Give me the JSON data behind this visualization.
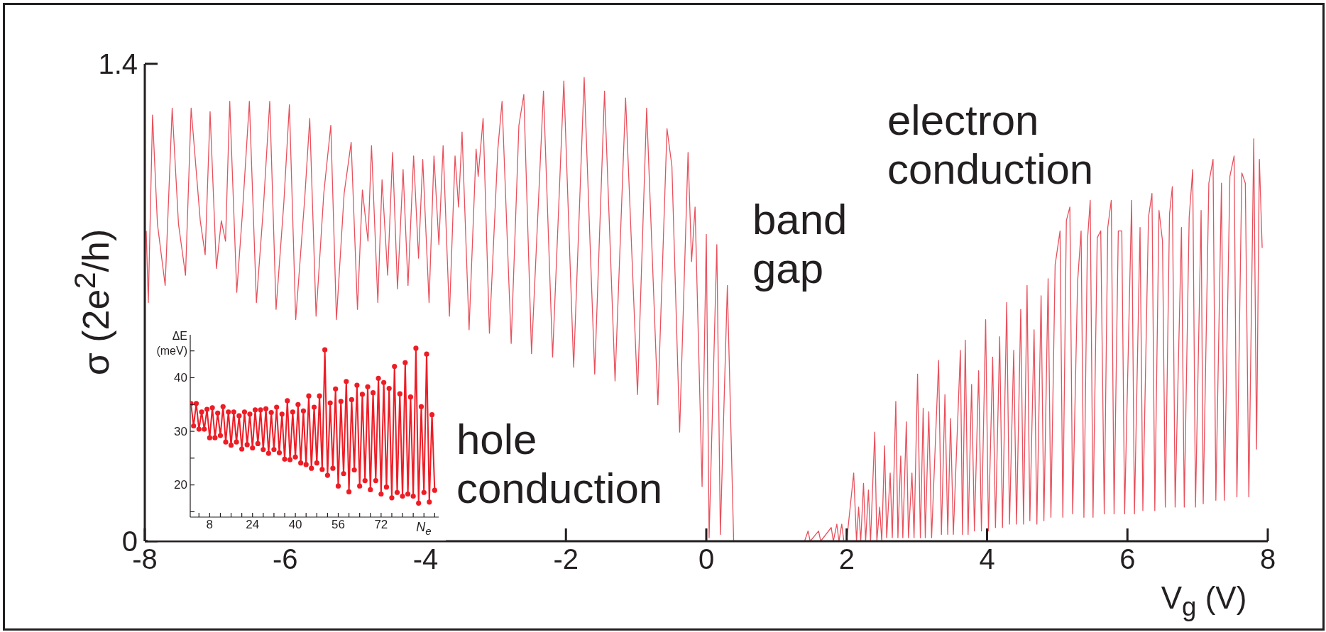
{
  "chart_data": [
    {
      "type": "line",
      "xlabel": "V$_{g}$ (V)",
      "ylabel": "σ (2e$^{2}$/h)",
      "color": "#e9505c",
      "annotations": [
        "hole conduction",
        "band gap",
        "electron conduction"
      ],
      "xlim": [
        -8,
        8
      ],
      "ylim": [
        0,
        1.4
      ],
      "xticks": [
        -8,
        -6,
        -4,
        -2,
        0,
        2,
        4,
        6,
        8
      ],
      "yticks": [
        0,
        1.4
      ],
      "x": [
        -7.98,
        -7.95,
        -7.89,
        -7.82,
        -7.71,
        -7.61,
        -7.52,
        -7.42,
        -7.34,
        -7.21,
        -7.14,
        -7.07,
        -6.98,
        -6.91,
        -6.85,
        -6.79,
        -6.69,
        -6.61,
        -6.51,
        -6.41,
        -6.31,
        -6.22,
        -6.13,
        -6.02,
        -5.94,
        -5.85,
        -5.72,
        -5.65,
        -5.56,
        -5.45,
        -5.35,
        -5.27,
        -5.16,
        -5.06,
        -4.97,
        -4.9,
        -4.82,
        -4.77,
        -4.68,
        -4.62,
        -4.54,
        -4.47,
        -4.4,
        -4.32,
        -4.25,
        -4.17,
        -4.1,
        -4.04,
        -3.95,
        -3.88,
        -3.81,
        -3.75,
        -3.66,
        -3.58,
        -3.53,
        -3.48,
        -3.38,
        -3.28,
        -3.25,
        -3.18,
        -3.09,
        -2.97,
        -2.91,
        -2.78,
        -2.67,
        -2.6,
        -2.49,
        -2.32,
        -2.19,
        -2.03,
        -1.89,
        -1.74,
        -1.59,
        -1.45,
        -1.3,
        -1.15,
        -0.98,
        -0.85,
        -0.69,
        -0.56,
        -0.49,
        -0.38,
        -0.26,
        -0.21,
        -0.16,
        -0.06,
        0.0,
        0.04,
        0.15,
        0.2,
        0.3,
        0.39,
        1.0,
        1.4,
        1.45,
        1.48,
        1.6,
        1.63,
        1.78,
        1.81,
        1.86,
        1.89,
        1.93,
        1.96,
        2.0,
        2.1,
        2.14,
        2.17,
        2.2,
        2.24,
        2.27,
        2.31,
        2.34,
        2.4,
        2.43,
        2.47,
        2.5,
        2.54,
        2.57,
        2.62,
        2.65,
        2.7,
        2.73,
        2.77,
        2.8,
        2.85,
        2.88,
        2.93,
        2.96,
        3.01,
        3.05,
        3.09,
        3.12,
        3.17,
        3.21,
        3.31,
        3.35,
        3.4,
        3.44,
        3.48,
        3.52,
        3.62,
        3.65,
        3.69,
        3.73,
        3.78,
        3.82,
        3.88,
        3.92,
        3.98,
        4.02,
        4.08,
        4.12,
        4.18,
        4.22,
        4.28,
        4.32,
        4.38,
        4.42,
        4.48,
        4.52,
        4.57,
        4.61,
        4.67,
        4.71,
        4.77,
        4.81,
        4.87,
        4.91,
        4.97,
        5.04,
        5.08,
        5.13,
        5.18,
        5.22,
        5.29,
        5.34,
        5.38,
        5.43,
        5.47,
        5.51,
        5.57,
        5.62,
        5.67,
        5.72,
        5.77,
        5.81,
        5.87,
        5.92,
        5.96,
        6.06,
        6.1,
        6.18,
        6.22,
        6.3,
        6.35,
        6.39,
        6.45,
        6.5,
        6.54,
        6.6,
        6.64,
        6.68,
        6.77,
        6.81,
        6.88,
        6.93,
        6.97,
        7.05,
        7.08,
        7.16,
        7.22,
        7.26,
        7.34,
        7.38,
        7.46,
        7.52,
        7.56,
        7.63,
        7.68,
        7.73,
        7.8,
        7.84,
        7.88,
        7.92
      ],
      "values": [
        0.91,
        0.7,
        1.25,
        0.93,
        0.75,
        1.27,
        0.93,
        0.78,
        1.27,
        0.94,
        0.84,
        1.26,
        0.8,
        0.94,
        0.88,
        1.29,
        0.73,
        0.96,
        1.29,
        0.7,
        0.98,
        1.29,
        0.68,
        0.99,
        1.28,
        0.65,
        1.01,
        1.24,
        0.66,
        1.02,
        1.22,
        0.65,
        1.02,
        1.17,
        0.68,
        1.03,
        0.88,
        1.16,
        0.7,
        1.06,
        0.78,
        1.14,
        0.74,
        1.09,
        0.75,
        1.13,
        0.83,
        1.12,
        0.7,
        1.13,
        0.87,
        1.16,
        0.66,
        1.13,
        0.98,
        1.2,
        0.62,
        1.15,
        1.07,
        1.24,
        0.61,
        1.15,
        1.29,
        0.58,
        1.22,
        1.31,
        0.55,
        1.32,
        0.54,
        1.35,
        0.51,
        1.36,
        0.49,
        1.32,
        0.47,
        1.3,
        0.43,
        1.27,
        0.4,
        1.21,
        1.1,
        0.32,
        1.14,
        0.82,
        0.98,
        0.16,
        0.9,
        0.01,
        0.87,
        0.02,
        0.75,
        0.0,
        0.0,
        0.0,
        0.03,
        0.0,
        0.03,
        0.0,
        0.04,
        0.0,
        0.05,
        0.0,
        0.05,
        0.0,
        0.0,
        0.2,
        0.0,
        0.1,
        0.0,
        0.17,
        0.0,
        0.15,
        0.0,
        0.32,
        0.0,
        0.1,
        0.0,
        0.28,
        0.01,
        0.2,
        0.01,
        0.41,
        0.01,
        0.25,
        0.01,
        0.35,
        0.01,
        0.2,
        0.01,
        0.49,
        0.01,
        0.39,
        0.01,
        0.38,
        0.01,
        0.53,
        0.02,
        0.43,
        0.02,
        0.36,
        0.02,
        0.56,
        0.02,
        0.59,
        0.02,
        0.46,
        0.03,
        0.5,
        0.03,
        0.65,
        0.03,
        0.54,
        0.04,
        0.6,
        0.04,
        0.7,
        0.05,
        0.56,
        0.05,
        0.68,
        0.05,
        0.75,
        0.06,
        0.62,
        0.05,
        0.72,
        0.06,
        0.77,
        0.07,
        0.81,
        0.91,
        0.07,
        0.94,
        0.98,
        0.08,
        0.76,
        0.91,
        0.07,
        0.88,
        1.0,
        0.07,
        0.89,
        0.91,
        0.08,
        0.92,
        1.0,
        0.08,
        0.91,
        0.91,
        0.08,
        1.0,
        0.08,
        0.92,
        0.09,
        0.95,
        1.02,
        0.09,
        0.97,
        0.88,
        0.1,
        0.96,
        1.04,
        0.1,
        0.92,
        0.1,
        0.95,
        1.09,
        0.1,
        0.97,
        0.11,
        1.05,
        1.12,
        0.12,
        1.05,
        0.12,
        1.07,
        1.13,
        0.13,
        1.08,
        1.05,
        0.13,
        1.18,
        0.27,
        1.12,
        0.86
      ]
    },
    {
      "type": "line",
      "xlabel": "N$_{e}$",
      "ylabel": "ΔE (meV)",
      "color": "#ee1c25",
      "marker": "circle",
      "xlim": [
        0.75,
        93.5
      ],
      "ylim": [
        14,
        48
      ],
      "xticks": [
        {
          "value": 4,
          "label": null
        },
        8,
        {
          "value": 12,
          "label": null
        },
        {
          "value": 16,
          "label": null
        },
        {
          "value": 20,
          "label": null
        },
        24,
        {
          "value": 28,
          "label": null
        },
        {
          "value": 32,
          "label": null
        },
        {
          "value": 36,
          "label": null
        },
        40,
        {
          "value": 44,
          "label": null
        },
        {
          "value": 48,
          "label": null
        },
        {
          "value": 52,
          "label": null
        },
        56,
        {
          "value": 60,
          "label": null
        },
        {
          "value": 64,
          "label": null
        },
        {
          "value": 68,
          "label": null
        },
        72,
        {
          "value": 76,
          "label": null
        },
        {
          "value": 80,
          "label": null
        },
        {
          "value": 84,
          "label": null
        },
        {
          "value": 88,
          "label": null
        },
        {
          "value": 92,
          "label": null
        }
      ],
      "yticks": [
        {
          "value": 15,
          "label": null
        },
        20,
        {
          "value": 25,
          "label": null
        },
        30,
        {
          "value": 35,
          "label": null
        },
        40,
        {
          "value": 45,
          "label": null
        }
      ],
      "x": [
        1,
        2,
        3,
        4,
        5,
        6,
        7,
        8,
        9,
        10,
        11,
        12,
        13,
        14,
        15,
        16,
        17,
        18,
        19,
        20,
        21,
        22,
        23,
        24,
        25,
        26,
        27,
        28,
        29,
        30,
        31,
        32,
        33,
        34,
        35,
        36,
        37,
        38,
        39,
        40,
        41,
        42,
        43,
        44,
        45,
        46,
        47,
        48,
        49,
        50,
        51,
        52,
        53,
        54,
        55,
        56,
        57,
        58,
        59,
        60,
        61,
        62,
        63,
        64,
        65,
        66,
        67,
        68,
        69,
        70,
        71,
        72,
        73,
        74,
        75,
        76,
        77,
        78,
        79,
        80,
        81,
        82,
        83,
        84,
        85,
        86,
        87,
        88,
        89,
        90,
        91,
        92
      ],
      "values": [
        35.2,
        31.0,
        35.2,
        30.4,
        33.6,
        30.4,
        34.1,
        28.8,
        34.4,
        28.8,
        33.4,
        29.2,
        34.6,
        28.0,
        33.6,
        27.4,
        33.6,
        28.0,
        32.9,
        26.7,
        33.6,
        27.5,
        33.2,
        26.9,
        34.0,
        27.7,
        34.0,
        26.6,
        34.2,
        25.9,
        33.5,
        26.6,
        34.5,
        26.0,
        33.2,
        24.8,
        35.7,
        24.7,
        33.6,
        25.2,
        35.0,
        24.1,
        33.8,
        23.8,
        36.6,
        23.1,
        34.5,
        24.1,
        36.6,
        22.9,
        45.2,
        21.8,
        35.3,
        23.1,
        37.9,
        19.8,
        35.6,
        22.1,
        39.3,
        18.7,
        35.9,
        22.8,
        38.6,
        19.8,
        36.9,
        20.8,
        38.3,
        19.1,
        37.2,
        20.8,
        39.9,
        18.3,
        39.1,
        19.6,
        38.0,
        17.6,
        42.1,
        18.6,
        37.0,
        17.9,
        42.8,
        18.3,
        36.4,
        17.9,
        45.5,
        16.6,
        34.6,
        18.6,
        44.4,
        16.8,
        33.1,
        19.0
      ]
    }
  ]
}
